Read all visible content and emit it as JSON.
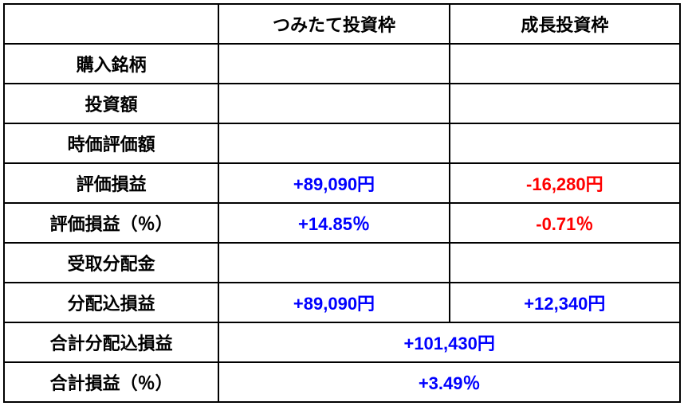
{
  "table": {
    "type": "table",
    "columns": {
      "label_width": 270,
      "data_width": 290
    },
    "header": {
      "empty": "",
      "col1": "つみたて投資枠",
      "col2": "成長投資枠"
    },
    "rows": {
      "purchase": {
        "label": "購入銘柄",
        "col1": "",
        "col2": ""
      },
      "invest_amount": {
        "label": "投資額",
        "col1": "",
        "col2": ""
      },
      "market_value": {
        "label": "時価評価額",
        "col1": "",
        "col2": ""
      },
      "gain_loss": {
        "label": "評価損益",
        "col1": "+89,090円",
        "col2": "-16,280円"
      },
      "gain_loss_pct": {
        "label": "評価損益（％）",
        "col1": "+14.85％",
        "col2": "-0.71％"
      },
      "dividend": {
        "label": "受取分配金",
        "col1": "",
        "col2": ""
      },
      "gain_with_div": {
        "label": "分配込損益",
        "col1": "+89,090円",
        "col2": "+12,340円"
      },
      "total_gain_div": {
        "label": "合計分配込損益",
        "merged": "+101,430円"
      },
      "total_gain_pct": {
        "label": "合計損益（％）",
        "merged": "+3.49％"
      }
    },
    "colors": {
      "positive": "#0000ff",
      "negative": "#ff0000",
      "border": "#000000",
      "background": "#ffffff",
      "label": "#000000"
    },
    "font": {
      "size_pt": 22,
      "weight": "bold",
      "family": "Meiryo"
    }
  }
}
